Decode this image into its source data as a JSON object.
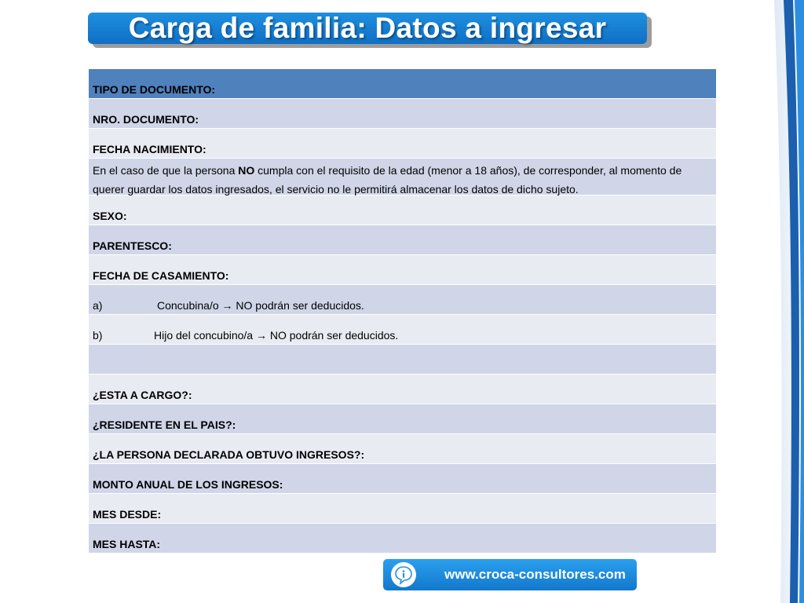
{
  "slide": {
    "title": "Carga de familia: Datos a ingresar"
  },
  "form": {
    "header_label": "TIPO DE DOCUMENTO:",
    "nro_documento": "NRO. DOCUMENTO:",
    "fecha_nacimiento": "FECHA NACIMIENTO:",
    "note": {
      "before": "En el caso de que la persona ",
      "bold": "NO",
      "after": " cumpla con el requisito de la edad (menor a 18 años), de corresponder, al momento de querer guardar los datos ingresados, el servicio  no le permitirá almacenar los datos de dicho sujeto."
    },
    "sexo": "SEXO:",
    "parentesco": "PARENTESCO:",
    "fecha_casamiento": "FECHA DE CASAMIENTO:",
    "item_a": {
      "letter": "a)",
      "text": "Concubina/o → NO podrán ser deducidos."
    },
    "item_b": {
      "letter": "b)",
      "text": "Hijo del concubino/a → NO podrán ser deducidos."
    },
    "a_cargo": "¿ESTA A CARGO?:",
    "residente": "¿RESIDENTE EN EL PAIS?:",
    "ingresos": "¿LA PERSONA DECLARADA OBTUVO INGRESOS?:",
    "monto_anual": "MONTO ANUAL DE LOS INGRESOS:",
    "mes_desde": "MES DESDE:",
    "mes_hasta": "MES HASTA:"
  },
  "footer": {
    "url": "www.croca-consultores.com",
    "icon": "info-speech-bubble-icon"
  },
  "colors": {
    "title_banner": "#1a84d8",
    "table_header": "#4f81bd",
    "row_dark": "#d0d6e8",
    "row_light": "#e9ebf3",
    "footer": "#1f8ce0"
  }
}
